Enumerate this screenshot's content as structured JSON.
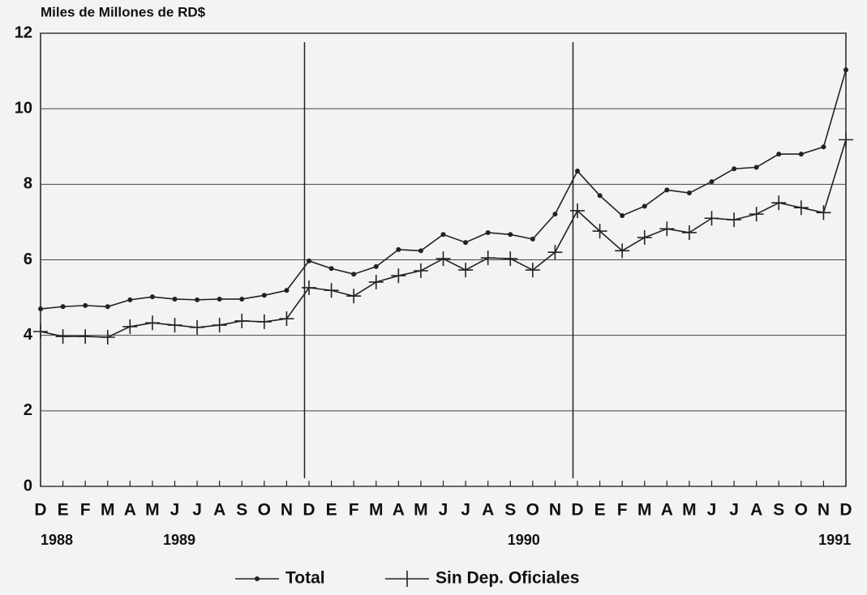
{
  "chart_data": {
    "type": "line",
    "title": "Miles de Millones de RD$",
    "categories": [
      "D",
      "E",
      "F",
      "M",
      "A",
      "M",
      "J",
      "J",
      "A",
      "S",
      "O",
      "N",
      "D",
      "E",
      "F",
      "M",
      "A",
      "M",
      "J",
      "J",
      "A",
      "S",
      "O",
      "N",
      "D",
      "E",
      "F",
      "M",
      "A",
      "M",
      "J",
      "J",
      "A",
      "S",
      "O",
      "N",
      "D"
    ],
    "year_labels": [
      "1988",
      "1989",
      "1990",
      "1991"
    ],
    "ylim": [
      0,
      12
    ],
    "yticks": [
      0,
      2,
      4,
      6,
      8,
      10,
      12
    ],
    "grid": true,
    "legend": "bottom",
    "series": [
      {
        "name": "Total",
        "color": "#222222",
        "marker": "dot",
        "values": [
          4.7,
          4.76,
          4.79,
          4.76,
          4.94,
          5.02,
          4.96,
          4.94,
          4.96,
          4.96,
          5.06,
          5.19,
          5.97,
          5.77,
          5.62,
          5.82,
          6.27,
          6.24,
          6.67,
          6.46,
          6.72,
          6.67,
          6.55,
          7.21,
          8.35,
          7.7,
          7.17,
          7.42,
          7.85,
          7.77,
          8.07,
          8.41,
          8.45,
          8.8,
          8.8,
          8.99,
          11.03
        ]
      },
      {
        "name": "Sin Dep. Oficiales",
        "color": "#222222",
        "marker": "plus",
        "values": [
          4.1,
          3.97,
          3.97,
          3.95,
          4.23,
          4.33,
          4.27,
          4.21,
          4.27,
          4.38,
          4.36,
          4.44,
          5.26,
          5.19,
          5.04,
          5.41,
          5.58,
          5.71,
          6.03,
          5.73,
          6.05,
          6.03,
          5.73,
          6.2,
          7.3,
          6.76,
          6.24,
          6.59,
          6.82,
          6.72,
          7.1,
          7.06,
          7.21,
          7.51,
          7.38,
          7.25,
          9.18
        ]
      }
    ]
  }
}
